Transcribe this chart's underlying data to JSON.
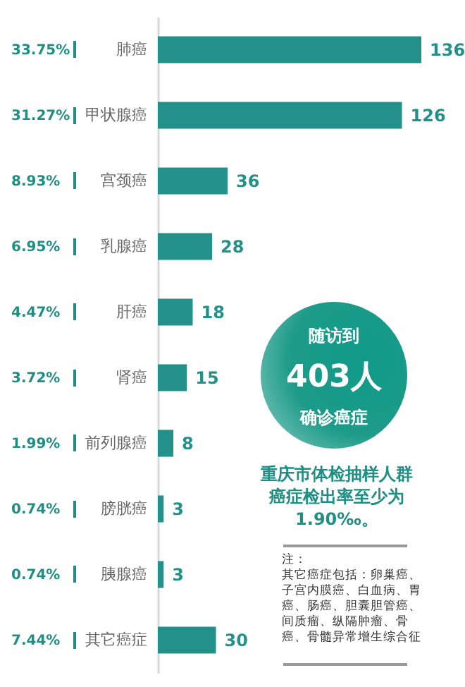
{
  "chart_data": {
    "type": "bar",
    "orientation": "horizontal",
    "categories": [
      "肺癌",
      "甲状腺癌",
      "宫颈癌",
      "乳腺癌",
      "肝癌",
      "肾癌",
      "前列腺癌",
      "膀胱癌",
      "胰腺癌",
      "其它癌症"
    ],
    "values": [
      136,
      126,
      36,
      28,
      18,
      15,
      8,
      3,
      3,
      30
    ],
    "color": "#23918a",
    "data_labels": true,
    "annotations": [
      "33.75%",
      "31.27%",
      "8.93%",
      "6.95%",
      "4.47%",
      "3.72%",
      "1.99%",
      "0.74%",
      "0.74%",
      "7.44%",
      "随访到",
      "403人",
      "确诊癌症",
      "重庆市体检抽样人群癌症检出率至少为1.90‰。",
      "注：",
      "其它癌症包括：卵巢癌、子宫内膜癌、白血病、胃癌、肠癌、胆囊胆管癌、间质瘤、纵隔肿瘤、骨癌、骨髓异常增生综合征"
    ]
  }
}
